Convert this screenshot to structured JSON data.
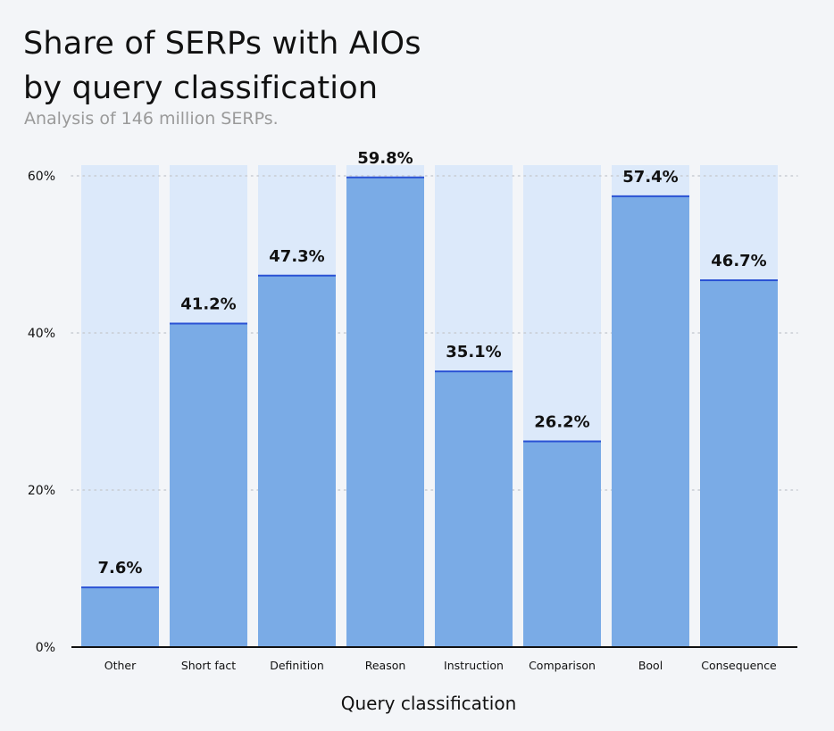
{
  "chart_data": {
    "type": "bar",
    "title": "Share of SERPs with AIOs\nby query classification",
    "subtitle": "Analysis of 146 million SERPs.",
    "xlabel": "Query classification",
    "ylabel": "",
    "ylim": [
      0,
      60
    ],
    "yticks": [
      0,
      20,
      40,
      60
    ],
    "ytick_labels": [
      "0%",
      "20%",
      "40%",
      "60%"
    ],
    "grid": true,
    "categories": [
      "Other",
      "Short fact",
      "Definition",
      "Reason",
      "Instruction",
      "Comparison",
      "Bool",
      "Consequence"
    ],
    "values": [
      7.6,
      41.2,
      47.3,
      59.8,
      35.1,
      26.2,
      57.4,
      46.7
    ],
    "value_labels": [
      "7.6%",
      "41.2%",
      "47.3%",
      "59.8%",
      "35.1%",
      "26.2%",
      "57.4%",
      "46.7%"
    ],
    "colors": {
      "background_bar": "#dce9fa",
      "bar": "#7aabe6",
      "bar_top_line": "#2a52d4",
      "grid": "#c8ccd2",
      "axis": "#111111"
    }
  }
}
